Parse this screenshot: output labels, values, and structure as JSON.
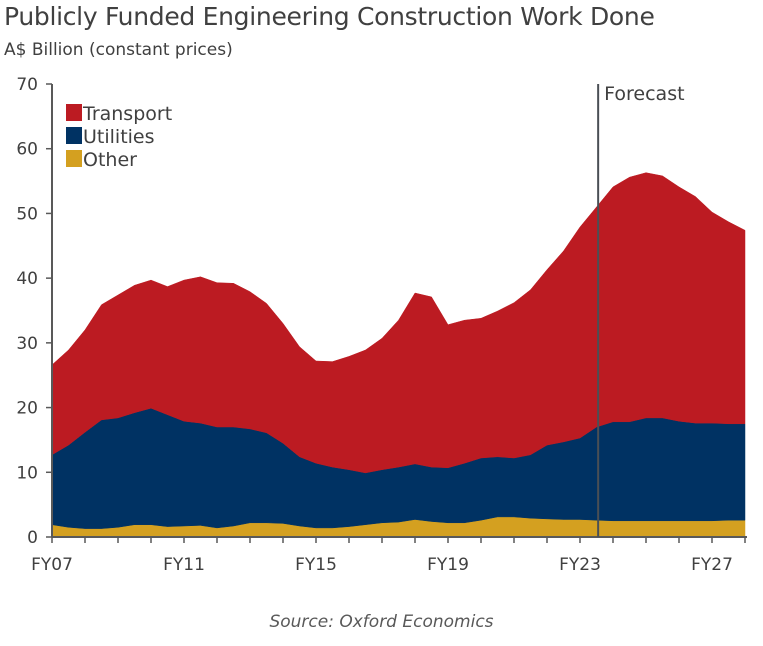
{
  "chart_data": {
    "type": "area",
    "stacked": true,
    "title": "Publicly Funded Engineering Construction Work Done",
    "ylabel": "A$ Billion (constant prices)",
    "source": "Source: Oxford Economics",
    "ylim": [
      0,
      70
    ],
    "yticks": [
      0,
      10,
      20,
      30,
      40,
      50,
      60,
      70
    ],
    "xlim": [
      2007,
      2028
    ],
    "xticks": [
      {
        "value": 2007,
        "label": "FY07"
      },
      {
        "value": 2011,
        "label": "FY11"
      },
      {
        "value": 2015,
        "label": "FY15"
      },
      {
        "value": 2019,
        "label": "FY19"
      },
      {
        "value": 2023,
        "label": "FY23"
      },
      {
        "value": 2027,
        "label": "FY27"
      }
    ],
    "grid": false,
    "legend_position": "top-left",
    "annotation": {
      "label": "Forecast",
      "x": 2023.55
    },
    "x": [
      2007,
      2007.5,
      2008,
      2008.5,
      2009,
      2009.5,
      2010,
      2010.5,
      2011,
      2011.5,
      2012,
      2012.5,
      2013,
      2013.5,
      2014,
      2014.5,
      2015,
      2015.5,
      2016,
      2016.5,
      2017,
      2017.5,
      2018,
      2018.5,
      2019,
      2019.5,
      2020,
      2020.5,
      2021,
      2021.5,
      2022,
      2022.5,
      2023,
      2023.5,
      2024,
      2024.5,
      2025,
      2025.5,
      2026,
      2026.5,
      2027,
      2027.5,
      2028
    ],
    "series": [
      {
        "name": "Other",
        "color": "#D4A020",
        "values": [
          1.9,
          1.5,
          1.3,
          1.3,
          1.5,
          1.9,
          1.9,
          1.6,
          1.7,
          1.8,
          1.4,
          1.7,
          2.2,
          2.2,
          2.1,
          1.7,
          1.4,
          1.4,
          1.6,
          1.9,
          2.2,
          2.3,
          2.7,
          2.4,
          2.2,
          2.2,
          2.6,
          3.1,
          3.1,
          2.9,
          2.8,
          2.7,
          2.7,
          2.6,
          2.5,
          2.5,
          2.5,
          2.5,
          2.5,
          2.5,
          2.5,
          2.6,
          2.6
        ]
      },
      {
        "name": "Utilities",
        "color": "#003263",
        "values": [
          10.8,
          12.7,
          14.9,
          16.8,
          16.9,
          17.3,
          18.0,
          17.3,
          16.2,
          15.8,
          15.6,
          15.3,
          14.5,
          13.9,
          12.4,
          10.7,
          10.0,
          9.4,
          8.8,
          8.0,
          8.2,
          8.5,
          8.6,
          8.4,
          8.5,
          9.2,
          9.6,
          9.3,
          9.1,
          9.8,
          11.4,
          12.0,
          12.6,
          14.4,
          15.3,
          15.3,
          15.9,
          15.9,
          15.4,
          15.1,
          15.1,
          14.9,
          14.9
        ]
      },
      {
        "name": "Transport",
        "color": "#BC1B22",
        "values": [
          13.9,
          14.7,
          15.8,
          17.8,
          19.0,
          19.7,
          19.8,
          19.8,
          21.8,
          22.6,
          22.3,
          22.2,
          21.2,
          20.0,
          18.5,
          17.0,
          15.8,
          16.3,
          17.5,
          19.0,
          20.3,
          22.7,
          26.4,
          26.3,
          22.1,
          22.1,
          21.6,
          22.5,
          24.0,
          25.5,
          27.1,
          29.5,
          32.6,
          34.0,
          36.3,
          37.8,
          37.9,
          37.4,
          36.2,
          35.0,
          32.6,
          31.2,
          29.9
        ]
      }
    ],
    "legend_order": [
      "Transport",
      "Utilities",
      "Other"
    ],
    "axis_color": "#595959"
  }
}
